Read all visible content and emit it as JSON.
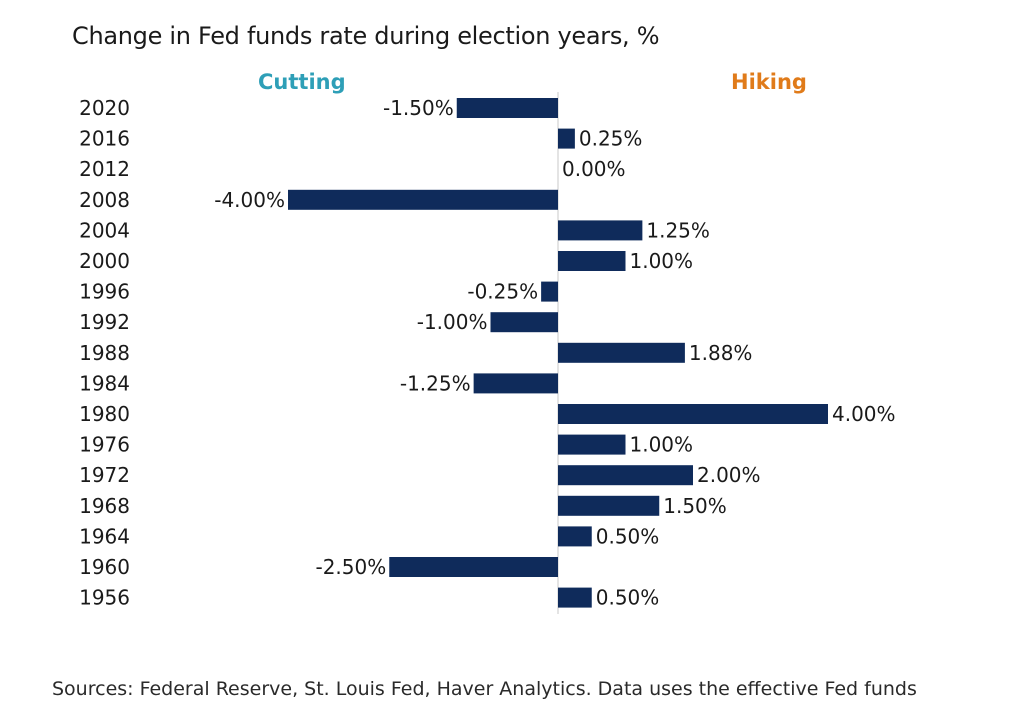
{
  "title": "Change in Fed funds rate during election years, %",
  "side_labels": {
    "cutting": "Cutting",
    "hiking": "Hiking"
  },
  "source": "Sources: Federal Reserve, St. Louis Fed, Haver Analytics. Data uses the effective Fed funds",
  "colors": {
    "bar": "#0f2b5b",
    "cutting": "#2e9fb7",
    "hiking": "#e07b1a",
    "axis": "#c8c8c8",
    "text": "#1a1a1a"
  },
  "chart_data": {
    "type": "bar",
    "orientation": "horizontal",
    "categories": [
      "2020",
      "2016",
      "2012",
      "2008",
      "2004",
      "2000",
      "1996",
      "1992",
      "1988",
      "1984",
      "1980",
      "1976",
      "1972",
      "1968",
      "1964",
      "1960",
      "1956"
    ],
    "values": [
      -1.5,
      0.25,
      0.0,
      -4.0,
      1.25,
      1.0,
      -0.25,
      -1.0,
      1.88,
      -1.25,
      4.0,
      1.0,
      2.0,
      1.5,
      0.5,
      -2.5,
      0.5
    ],
    "data_labels": [
      "-1.50%",
      "0.25%",
      "0.00%",
      "-4.00%",
      "1.25%",
      "1.00%",
      "-0.25%",
      "-1.00%",
      "1.88%",
      "-1.25%",
      "4.00%",
      "1.00%",
      "2.00%",
      "1.50%",
      "0.50%",
      "-2.50%",
      "0.50%"
    ],
    "xlim": [
      -4,
      4
    ],
    "grid": false,
    "legend": "none"
  }
}
